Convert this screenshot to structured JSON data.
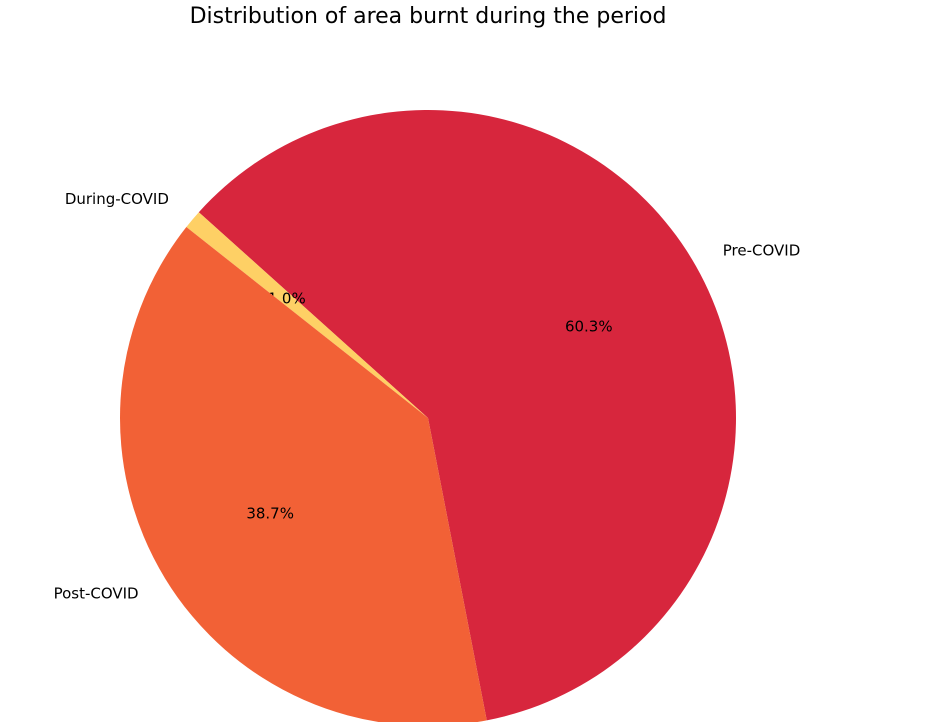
{
  "chart_data": {
    "type": "pie",
    "title": "Distribution of area burnt during the period",
    "categories": [
      "Pre-COVID",
      "During-COVID",
      "Post-COVID"
    ],
    "values": [
      60.3,
      1.0,
      38.7
    ],
    "value_labels": [
      "60.3%",
      "1.0%",
      "38.7%"
    ],
    "colors": [
      "#d7263d",
      "#fed065",
      "#f26136"
    ]
  }
}
